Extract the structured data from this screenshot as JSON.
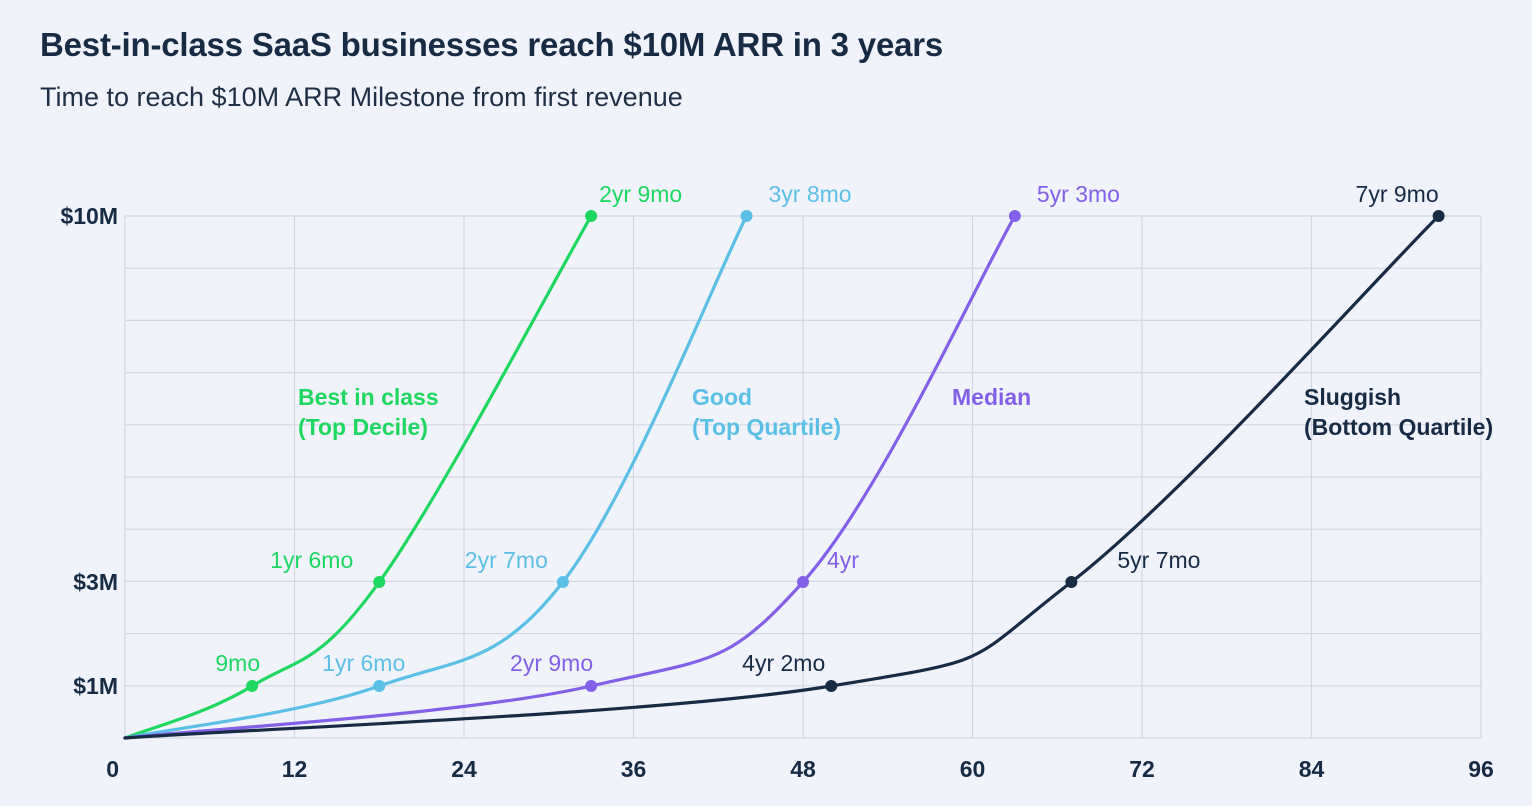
{
  "title": "Best-in-class SaaS businesses reach $10M ARR in 3 years",
  "subtitle": "Time to reach $10M ARR Milestone from first revenue",
  "chart_data": {
    "type": "line",
    "x_ticks": [
      0,
      12,
      24,
      36,
      48,
      60,
      72,
      84,
      96
    ],
    "xlim": [
      0,
      96
    ],
    "y_ticks": [
      {
        "label": "$1M",
        "value": 1
      },
      {
        "label": "$3M",
        "value": 3
      },
      {
        "label": "$10M",
        "value": 10
      }
    ],
    "grid": true,
    "series": [
      {
        "name": "Best in class",
        "name_line2": "(Top Decile)",
        "color": "#1ed760",
        "points": [
          {
            "x": 0,
            "y": 0,
            "label": ""
          },
          {
            "x": 9,
            "y": 1,
            "label": "9mo"
          },
          {
            "x": 18,
            "y": 3,
            "label": "1yr 6mo"
          },
          {
            "x": 33,
            "y": 10,
            "label": "2yr 9mo"
          }
        ]
      },
      {
        "name": "Good",
        "name_line2": "(Top Quartile)",
        "color": "#5bbfe6",
        "points": [
          {
            "x": 0,
            "y": 0,
            "label": ""
          },
          {
            "x": 18,
            "y": 1,
            "label": "1yr 6mo"
          },
          {
            "x": 31,
            "y": 3,
            "label": "2yr 7mo"
          },
          {
            "x": 44,
            "y": 10,
            "label": "3yr 8mo"
          }
        ]
      },
      {
        "name": "Median",
        "name_line2": "",
        "color": "#8360e8",
        "points": [
          {
            "x": 0,
            "y": 0,
            "label": ""
          },
          {
            "x": 33,
            "y": 1,
            "label": "2yr 9mo"
          },
          {
            "x": 48,
            "y": 3,
            "label": "4yr"
          },
          {
            "x": 63,
            "y": 10,
            "label": "5yr 3mo"
          }
        ]
      },
      {
        "name": "Sluggish",
        "name_line2": "(Bottom Quartile)",
        "color": "#172b45",
        "points": [
          {
            "x": 0,
            "y": 0,
            "label": ""
          },
          {
            "x": 50,
            "y": 1,
            "label": "4yr 2mo"
          },
          {
            "x": 67,
            "y": 3,
            "label": "5yr 7mo"
          },
          {
            "x": 93,
            "y": 10,
            "label": "7yr 9mo"
          }
        ]
      }
    ]
  }
}
